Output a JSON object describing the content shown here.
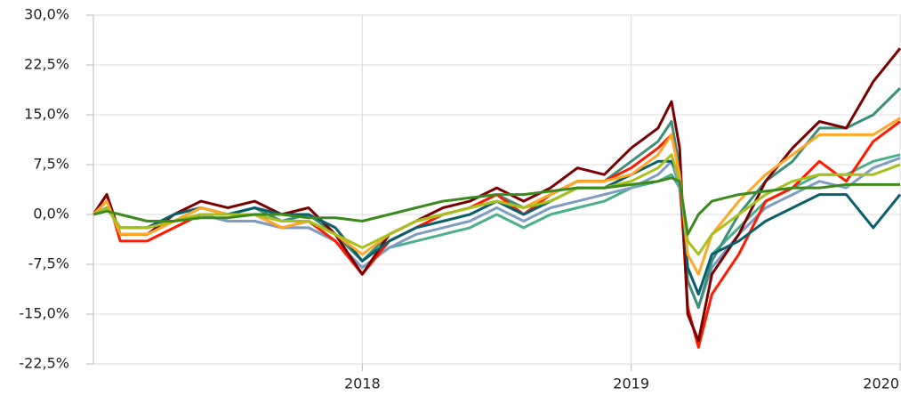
{
  "chart_data": {
    "type": "line",
    "x": [
      2017.0,
      2017.05,
      2017.1,
      2017.2,
      2017.3,
      2017.4,
      2017.5,
      2017.6,
      2017.7,
      2017.8,
      2017.9,
      2018.0,
      2018.1,
      2018.2,
      2018.3,
      2018.4,
      2018.5,
      2018.6,
      2018.7,
      2018.8,
      2018.9,
      2019.0,
      2019.1,
      2019.15,
      2019.18,
      2019.21,
      2019.25,
      2019.3,
      2019.4,
      2019.5,
      2019.6,
      2019.7,
      2019.8,
      2019.9,
      2020.0
    ],
    "xlim": [
      2017.0,
      2020.0
    ],
    "xticks": [
      2018,
      2019,
      2020
    ],
    "ylim": [
      -22.5,
      30
    ],
    "yticks": [
      {
        "value": 30,
        "label": "30,0%"
      },
      {
        "value": 22.5,
        "label": "22,5%"
      },
      {
        "value": 15,
        "label": "15,0%"
      },
      {
        "value": 7.5,
        "label": "7,5%"
      },
      {
        "value": 0,
        "label": "0,0%"
      },
      {
        "value": -7.5,
        "label": "-7,5%"
      },
      {
        "value": -15,
        "label": "-15,0%"
      },
      {
        "value": -22.5,
        "label": "-22,5%"
      }
    ],
    "grid": true,
    "series": [
      {
        "color": "#4caf8c",
        "values": [
          0,
          1,
          -2,
          -2,
          -1,
          0,
          -1,
          -1,
          -2,
          -2,
          -4,
          -8,
          -5,
          -4,
          -3,
          -2,
          0,
          -2,
          0,
          1,
          2,
          4,
          5,
          6,
          4,
          -8,
          -12,
          -6,
          -2,
          2,
          4,
          6,
          6,
          8,
          9
        ]
      },
      {
        "color": "#7f9cc4",
        "values": [
          0,
          1,
          -2,
          -2,
          -1,
          0,
          -1,
          -1,
          -2,
          -2,
          -4,
          -8,
          -5,
          -3,
          -2,
          -1,
          1,
          -1,
          1,
          2,
          3,
          4,
          6,
          8,
          4,
          -10,
          -14,
          -8,
          -3,
          1,
          3,
          5,
          4,
          7,
          8.5
        ]
      },
      {
        "color": "#3d8f7a",
        "values": [
          0,
          2,
          -3,
          -3,
          -1,
          1,
          0,
          1,
          -1,
          0,
          -3,
          -7,
          -3,
          -1,
          0,
          1,
          3,
          1,
          3,
          5,
          5,
          8,
          11,
          14,
          7,
          -10,
          -14,
          -7,
          0,
          5,
          8,
          13,
          13,
          15,
          19
        ]
      },
      {
        "color": "#ff1a00",
        "values": [
          0,
          3,
          -4,
          -4,
          -2,
          0,
          0,
          0,
          -2,
          -1,
          -4,
          -9,
          -4,
          -2,
          0,
          1,
          3,
          0,
          3,
          5,
          5,
          7,
          10,
          12,
          6,
          -14,
          -20,
          -12,
          -6,
          2,
          4,
          8,
          5,
          11,
          14
        ]
      },
      {
        "color": "#7b0000",
        "values": [
          0,
          3,
          -3,
          -3,
          0,
          2,
          1,
          2,
          0,
          1,
          -3,
          -9,
          -3,
          -1,
          1,
          2,
          4,
          2,
          4,
          7,
          6,
          10,
          13,
          17,
          10,
          -15,
          -19,
          -9,
          -3,
          5,
          10,
          14,
          13,
          20,
          25
        ]
      },
      {
        "color": "#0a5f6b",
        "values": [
          0,
          1,
          -2,
          -2,
          0,
          1,
          0,
          1,
          0,
          0,
          -2,
          -7,
          -4,
          -2,
          -1,
          0,
          2,
          0,
          2,
          4,
          4,
          6,
          8,
          8,
          6,
          -8,
          -12,
          -6,
          -4,
          -1,
          1,
          3,
          3,
          -2,
          3
        ]
      },
      {
        "color": "#ffa726",
        "values": [
          0,
          2,
          -3,
          -3,
          -1,
          1,
          0,
          0,
          -2,
          -1,
          -3,
          -6,
          -3,
          -1,
          0,
          1,
          2,
          1,
          3,
          5,
          5,
          6,
          9,
          12,
          6,
          -6,
          -9,
          -3,
          2,
          6,
          9,
          12,
          12,
          12,
          14.5
        ]
      },
      {
        "color": "#a8c01c",
        "values": [
          0,
          1,
          -2,
          -2,
          -1,
          0,
          0,
          0,
          -1,
          -1,
          -3,
          -5,
          -3,
          -1,
          0,
          1,
          2,
          1,
          2,
          4,
          4,
          5,
          7,
          9,
          5,
          -4,
          -6,
          -3,
          0,
          3,
          5,
          6,
          6,
          6,
          7.5
        ]
      },
      {
        "color": "#3c8a1e",
        "values": [
          0,
          0.5,
          0,
          -1,
          -1,
          -0.5,
          -0.5,
          0,
          0,
          -0.5,
          -0.5,
          -1,
          0,
          1,
          2,
          2.5,
          3,
          3,
          3.5,
          4,
          4,
          4.5,
          5,
          5.5,
          5,
          -3,
          0,
          2,
          3,
          3.5,
          4,
          4,
          4.5,
          4.5,
          4.5
        ]
      }
    ]
  }
}
